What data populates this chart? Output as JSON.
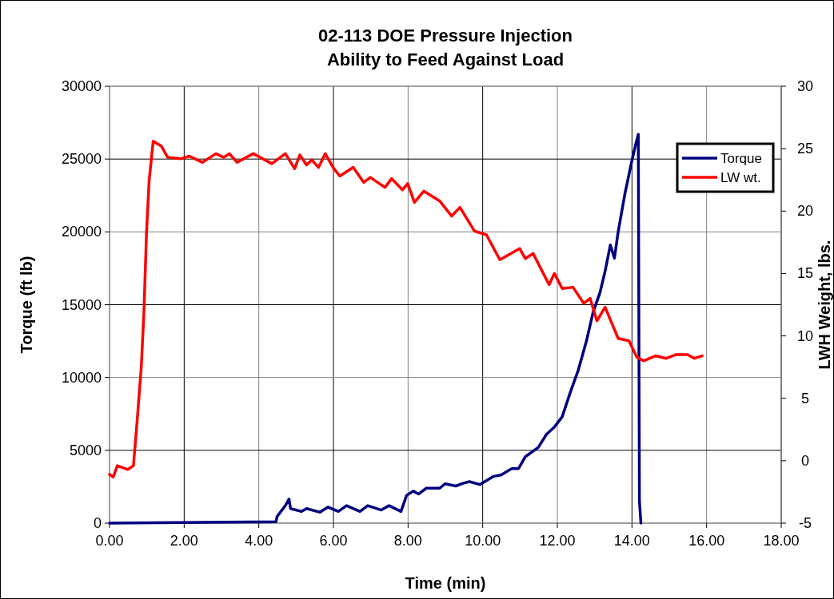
{
  "chart_data": {
    "type": "line",
    "title": "02-113 DOE Pressure Injection\nAbility to Feed Against Load",
    "xlabel": "Time (min)",
    "ylabel": "Torque (ft lb)",
    "y2label": "LWH Weight, lbs.",
    "xlim": [
      0,
      18
    ],
    "xticks": [
      {
        "value": 0,
        "label": "0.00"
      },
      {
        "value": 2,
        "label": "2.00"
      },
      {
        "value": 4,
        "label": "4.00"
      },
      {
        "value": 6,
        "label": "6.00"
      },
      {
        "value": 8,
        "label": "8.00"
      },
      {
        "value": 10,
        "label": "10.00"
      },
      {
        "value": 12,
        "label": "12.00"
      },
      {
        "value": 14,
        "label": "14.00"
      },
      {
        "value": 16,
        "label": "16.00"
      },
      {
        "value": 18,
        "label": "18.00"
      }
    ],
    "ylim": [
      0,
      30000
    ],
    "yticks": [
      0,
      5000,
      10000,
      15000,
      20000,
      25000,
      30000
    ],
    "y2lim": [
      -5,
      30
    ],
    "y2ticks": [
      -5,
      0,
      5,
      10,
      15,
      20,
      25,
      30
    ],
    "grid": true,
    "legend": "top right",
    "line_style": "solid",
    "series": [
      {
        "name": "Torque",
        "color": "#000080",
        "x": [
          0,
          4.46,
          4.49,
          4.71,
          4.81,
          4.85,
          5.14,
          5.28,
          5.64,
          5.85,
          6.13,
          6.35,
          6.71,
          6.92,
          7.28,
          7.49,
          7.81,
          7.96,
          8.14,
          8.28,
          8.49,
          8.85,
          8.99,
          9.28,
          9.49,
          9.64,
          9.92,
          10.28,
          10.49,
          10.78,
          10.96,
          11.14,
          11.49,
          11.71,
          11.92,
          12.13,
          12.35,
          12.56,
          12.78,
          12.96,
          13.14,
          13.28,
          13.42,
          13.53,
          13.63,
          13.81,
          13.99,
          14.1,
          14.17,
          14.2,
          14.24
        ],
        "values": [
          0,
          100,
          450,
          1200,
          1650,
          1000,
          800,
          1000,
          750,
          1100,
          800,
          1200,
          800,
          1200,
          900,
          1200,
          800,
          1900,
          2200,
          2000,
          2400,
          2400,
          2700,
          2550,
          2750,
          2850,
          2650,
          3200,
          3300,
          3750,
          3750,
          4550,
          5200,
          6100,
          6600,
          7300,
          9000,
          10500,
          12500,
          14500,
          15800,
          17300,
          19100,
          18200,
          20000,
          22600,
          24800,
          26000,
          26700,
          1500,
          0
        ]
      },
      {
        "name": "LW wt.",
        "color": "#ff0000",
        "axis": "y2",
        "x": [
          0,
          0.1,
          0.21,
          0.49,
          0.64,
          0.74,
          0.85,
          0.92,
          0.99,
          1.06,
          1.17,
          1.39,
          1.56,
          1.92,
          2.14,
          2.49,
          2.85,
          3.06,
          3.21,
          3.42,
          3.85,
          4.35,
          4.71,
          4.96,
          5.1,
          5.28,
          5.42,
          5.6,
          5.78,
          5.99,
          6.17,
          6.53,
          6.81,
          6.99,
          7.38,
          7.56,
          7.85,
          7.99,
          8.17,
          8.42,
          8.85,
          9.17,
          9.39,
          9.78,
          10.1,
          10.46,
          10.99,
          11.14,
          11.35,
          11.78,
          11.92,
          12.13,
          12.42,
          12.71,
          12.88,
          13.06,
          13.28,
          13.63,
          13.92,
          14.13,
          14.31,
          14.63,
          14.92,
          15.17,
          15.49,
          15.67,
          15.88
        ],
        "values": [
          -1.1,
          -1.3,
          -0.4,
          -0.7,
          -0.4,
          3.2,
          7.5,
          11.8,
          18.2,
          22.4,
          25.6,
          25.2,
          24.3,
          24.2,
          24.4,
          23.9,
          24.6,
          24.3,
          24.6,
          23.9,
          24.6,
          23.8,
          24.6,
          23.4,
          24.5,
          23.7,
          24.1,
          23.5,
          24.6,
          23.5,
          22.8,
          23.5,
          22.3,
          22.7,
          21.9,
          22.6,
          21.7,
          22.2,
          20.7,
          21.6,
          20.8,
          19.6,
          20.3,
          18.4,
          18.1,
          16.1,
          17.0,
          16.2,
          16.6,
          14.1,
          15.0,
          13.8,
          13.9,
          12.6,
          13.0,
          11.2,
          12.3,
          9.8,
          9.6,
          8.3,
          8.0,
          8.4,
          8.2,
          8.5,
          8.5,
          8.2,
          8.4
        ]
      }
    ]
  }
}
